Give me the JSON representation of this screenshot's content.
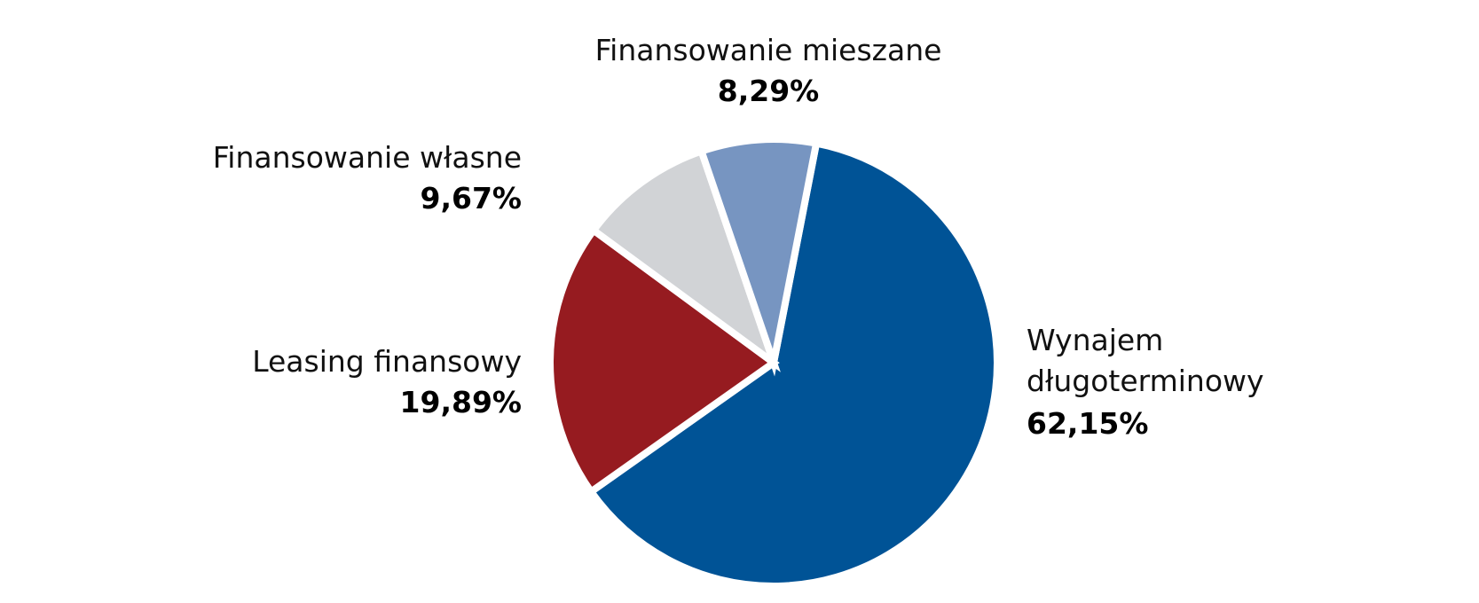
{
  "chart_data": {
    "type": "pie",
    "slices": [
      {
        "label": [
          "Wynajem",
          "długoterminowy"
        ],
        "value": 62.15,
        "display": "62,15%",
        "color": "#005396"
      },
      {
        "label": [
          "Leasing finansowy"
        ],
        "value": 19.89,
        "display": "19,89%",
        "color": "#961b20"
      },
      {
        "label": [
          "Finansowanie własne"
        ],
        "value": 9.67,
        "display": "9,67%",
        "color": "#d1d3d6"
      },
      {
        "label": [
          "Finansowanie mieszane"
        ],
        "value": 8.29,
        "display": "8,29%",
        "color": "#7795c1"
      }
    ],
    "start_angle_deg": 11,
    "direction": "clockwise",
    "legend": "none"
  }
}
